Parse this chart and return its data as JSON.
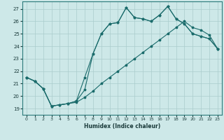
{
  "xlabel": "Humidex (Indice chaleur)",
  "bg_color": "#cde8e8",
  "line_color": "#1a6b6b",
  "grid_color": "#aacccc",
  "xlim": [
    -0.5,
    23.5
  ],
  "ylim": [
    18.5,
    27.6
  ],
  "xticks": [
    0,
    1,
    2,
    3,
    4,
    5,
    6,
    7,
    8,
    9,
    10,
    11,
    12,
    13,
    14,
    15,
    16,
    17,
    18,
    19,
    20,
    21,
    22,
    23
  ],
  "yticks": [
    19,
    20,
    21,
    22,
    23,
    24,
    25,
    26,
    27
  ],
  "line1_x": [
    0,
    1,
    2,
    3,
    4,
    5,
    6,
    7,
    8,
    9,
    10,
    11,
    12,
    13,
    14,
    15,
    16,
    17,
    18,
    19,
    20,
    21,
    22,
    23
  ],
  "line1_y": [
    21.5,
    21.2,
    20.6,
    19.2,
    19.3,
    19.4,
    19.5,
    19.9,
    20.4,
    21.0,
    21.5,
    22.0,
    22.5,
    23.0,
    23.5,
    24.0,
    24.5,
    25.0,
    25.5,
    26.0,
    25.5,
    25.3,
    24.9,
    23.8
  ],
  "line2_x": [
    0,
    1,
    2,
    3,
    4,
    5,
    6,
    7,
    8,
    9,
    10,
    11,
    12,
    13,
    14,
    15,
    16,
    17,
    18,
    19,
    20,
    21,
    22,
    23
  ],
  "line2_y": [
    21.5,
    21.2,
    20.6,
    19.2,
    19.3,
    19.4,
    19.6,
    21.5,
    23.4,
    25.0,
    25.8,
    25.9,
    27.1,
    26.3,
    26.2,
    26.0,
    26.5,
    27.2,
    26.2,
    25.8,
    25.0,
    24.8,
    24.6,
    23.8
  ],
  "line3_x": [
    0,
    1,
    2,
    3,
    4,
    5,
    6,
    7,
    8,
    9,
    10,
    11,
    12,
    13,
    14,
    15,
    16,
    17,
    18,
    19,
    20,
    21,
    22,
    23
  ],
  "line3_y": [
    21.5,
    21.2,
    20.6,
    19.2,
    19.3,
    19.4,
    19.6,
    20.5,
    23.4,
    25.0,
    25.8,
    25.9,
    27.1,
    26.3,
    26.2,
    26.0,
    26.5,
    27.2,
    26.2,
    25.8,
    25.0,
    24.8,
    24.6,
    23.8
  ],
  "xlabel_fontsize": 5.5,
  "tick_fontsize": 4.5,
  "ytick_fontsize": 5.0
}
